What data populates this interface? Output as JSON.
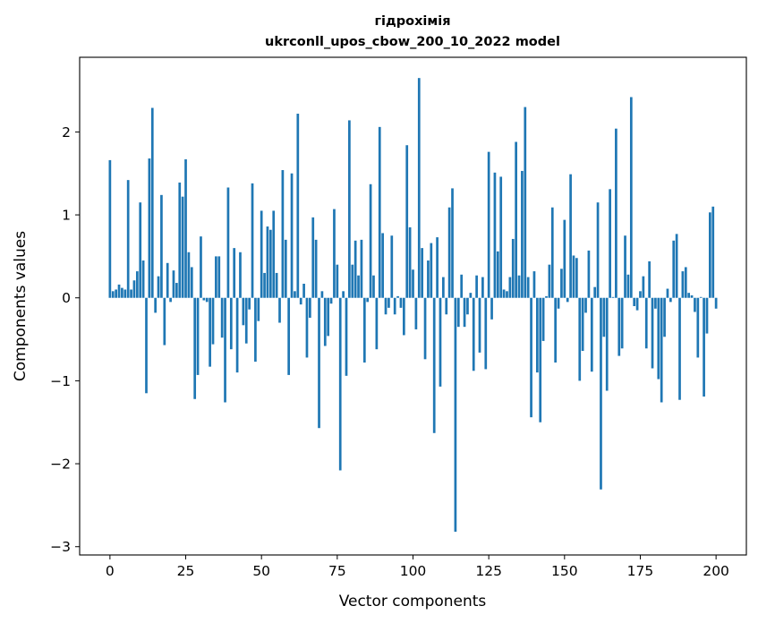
{
  "chart_data": {
    "type": "bar",
    "title": "гідрохімія",
    "subtitle": "ukrconll_upos_cbow_200_10_2022 model",
    "xlabel": "Vector components",
    "ylabel": "Components values",
    "xlim": [
      -10,
      210
    ],
    "ylim": [
      -3.1,
      2.9
    ],
    "xticks": [
      0,
      25,
      50,
      75,
      100,
      125,
      150,
      175,
      200
    ],
    "yticks": [
      -3,
      -2,
      -1,
      0,
      1,
      2
    ],
    "ytick_labels": [
      "−3",
      "−2",
      "−1",
      "0",
      "1",
      "2"
    ],
    "grid": false,
    "bar_color": "#1f77b4",
    "values": [
      1.66,
      0.08,
      0.1,
      0.16,
      0.12,
      0.1,
      1.42,
      0.1,
      0.21,
      0.32,
      1.15,
      0.45,
      -1.15,
      1.68,
      2.29,
      -0.18,
      0.26,
      1.24,
      -0.57,
      0.42,
      -0.05,
      0.33,
      0.18,
      1.39,
      1.22,
      1.67,
      0.55,
      0.37,
      -1.22,
      -0.93,
      0.74,
      -0.03,
      -0.05,
      -0.83,
      -0.56,
      0.5,
      0.5,
      -0.48,
      -1.26,
      1.33,
      -0.62,
      0.6,
      -0.9,
      0.55,
      -0.33,
      -0.55,
      -0.14,
      1.38,
      -0.77,
      -0.28,
      1.05,
      0.3,
      0.86,
      0.82,
      1.05,
      0.3,
      -0.3,
      1.54,
      0.7,
      -0.93,
      1.5,
      0.08,
      2.22,
      -0.08,
      0.17,
      -0.72,
      -0.24,
      0.97,
      0.7,
      -1.57,
      0.08,
      -0.58,
      -0.46,
      -0.07,
      1.07,
      0.4,
      -2.08,
      0.08,
      -0.94,
      2.14,
      0.4,
      0.69,
      0.27,
      0.7,
      -0.78,
      -0.05,
      1.37,
      0.27,
      -0.62,
      2.06,
      0.78,
      -0.2,
      -0.12,
      0.75,
      -0.2,
      0.02,
      -0.12,
      -0.45,
      1.84,
      0.85,
      0.34,
      -0.38,
      2.65,
      0.6,
      -0.74,
      0.45,
      0.66,
      -1.63,
      0.73,
      -1.07,
      0.25,
      -0.2,
      1.09,
      1.32,
      -2.82,
      -0.35,
      0.28,
      -0.35,
      -0.2,
      0.06,
      -0.88,
      0.27,
      -0.66,
      0.25,
      -0.86,
      1.76,
      -0.26,
      1.51,
      0.56,
      1.46,
      0.1,
      0.08,
      0.25,
      0.71,
      1.88,
      0.27,
      1.53,
      2.3,
      0.25,
      -1.44,
      0.32,
      -0.9,
      -1.5,
      -0.52,
      0.02,
      0.4,
      1.09,
      -0.78,
      -0.13,
      0.35,
      0.94,
      -0.05,
      1.49,
      0.51,
      0.48,
      -1.0,
      -0.64,
      -0.18,
      0.57,
      -0.89,
      0.13,
      1.15,
      -2.31,
      -0.47,
      -1.12,
      1.31,
      0.01,
      2.04,
      -0.7,
      -0.61,
      0.75,
      0.28,
      2.42,
      -0.1,
      -0.15,
      0.08,
      0.26,
      -0.61,
      0.44,
      -0.85,
      -0.13,
      -0.98,
      -1.26,
      -0.47,
      0.11,
      -0.05,
      0.69,
      0.77,
      -1.23,
      0.32,
      0.37,
      0.06,
      0.03,
      -0.17,
      -0.72,
      0.01,
      -1.19,
      -0.43,
      1.03,
      1.1,
      -0.13
    ]
  }
}
